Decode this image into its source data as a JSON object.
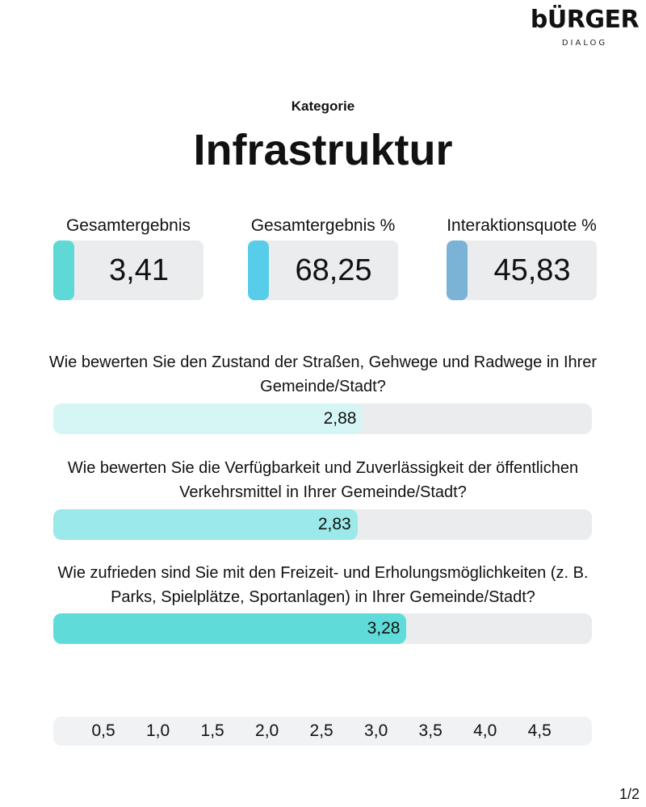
{
  "logo": {
    "main": "bÜRGER",
    "sub": "DIALOG"
  },
  "category": {
    "label": "Kategorie",
    "title": "Infrastruktur"
  },
  "metrics": [
    {
      "label": "Gesamtergebnis",
      "value": "3,41",
      "color": "#5fd9d6"
    },
    {
      "label": "Gesamtergebnis %",
      "value": "68,25",
      "color": "#57cdea"
    },
    {
      "label": "Interaktionsquote %",
      "value": "45,83",
      "color": "#7bb3d6"
    }
  ],
  "chart_data": {
    "type": "bar",
    "orientation": "horizontal",
    "xlim": [
      0.04,
      4.98
    ],
    "ticks": [
      "0,5",
      "1,0",
      "1,5",
      "2,0",
      "2,5",
      "3,0",
      "3,5",
      "4,0",
      "4,5"
    ],
    "tick_values": [
      0.5,
      1.0,
      1.5,
      2.0,
      2.5,
      3.0,
      3.5,
      4.0,
      4.5
    ],
    "series": [
      {
        "question": "Wie bewerten Sie den Zustand der Straßen, Gehwege und Radwege in Ihrer Gemeinde/Stadt?",
        "value": 2.88,
        "label": "2,88",
        "color": "#d6f6f5"
      },
      {
        "question": "Wie bewerten Sie die Verfügbarkeit und Zuverlässigkeit der öffentlichen Verkehrsmittel in Ihrer Gemeinde/Stadt?",
        "value": 2.83,
        "label": "2,83",
        "color": "#9be9e8"
      },
      {
        "question": "Wie zufrieden sind Sie mit den Freizeit- und Erholungsmöglichkeiten (z. B. Parks, Spielplätze, Sportanlagen) in Ihrer Gemeinde/Stadt?",
        "value": 3.28,
        "label": "3,28",
        "color": "#5fdcd9"
      }
    ]
  },
  "page": "1/2"
}
